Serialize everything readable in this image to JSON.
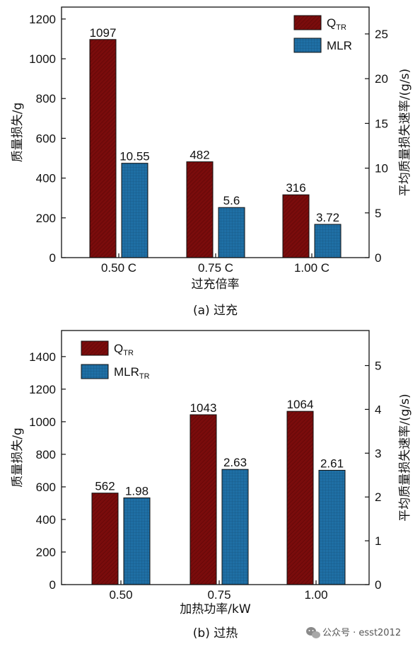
{
  "chart_data": [
    {
      "type": "bar",
      "caption": "(a) 过充",
      "xlabel": "过充倍率",
      "ylabel": "质量损失/g",
      "ylabel_right": "平均质量损失速率/(g/s)",
      "categories": [
        "0.50 C",
        "0.75 C",
        "1.00 C"
      ],
      "ylim": [
        0,
        1260
      ],
      "ylim_right": [
        0,
        28
      ],
      "yticks": [
        0,
        200,
        400,
        600,
        800,
        1000,
        1200
      ],
      "yticks_right": [
        0,
        5,
        10,
        15,
        20,
        25
      ],
      "legend_position": "top-right",
      "series": [
        {
          "name": "Q",
          "name_sub": "TR",
          "axis": "left",
          "color": "#7a0c0c",
          "values": [
            1097,
            482,
            316
          ],
          "labels": [
            "1097",
            "482",
            "316"
          ]
        },
        {
          "name": "MLR",
          "name_sub": "",
          "axis": "right",
          "color": "#1f6fa5",
          "values": [
            10.55,
            5.6,
            3.72
          ],
          "labels": [
            "10.55",
            "5.6",
            "3.72"
          ]
        }
      ]
    },
    {
      "type": "bar",
      "caption": "(b) 过热",
      "xlabel": "加热功率/kW",
      "ylabel": "质量损失/g",
      "ylabel_right": "平均质量损失速率/(g/s)",
      "categories": [
        "0.50",
        "0.75",
        "1.00"
      ],
      "ylim": [
        0,
        1560
      ],
      "ylim_right": [
        0,
        5.8
      ],
      "yticks": [
        0,
        200,
        400,
        600,
        800,
        1000,
        1200,
        1400
      ],
      "yticks_right": [
        0,
        1,
        2,
        3,
        4,
        5
      ],
      "legend_position": "top-left",
      "series": [
        {
          "name": "Q",
          "name_sub": "TR",
          "axis": "left",
          "color": "#7a0c0c",
          "values": [
            562,
            1043,
            1064
          ],
          "labels": [
            "562",
            "1043",
            "1064"
          ]
        },
        {
          "name": "MLR",
          "name_sub": "TR",
          "axis": "right",
          "color": "#1f6fa5",
          "values": [
            1.98,
            2.63,
            2.61
          ],
          "labels": [
            "1.98",
            "2.63",
            "2.61"
          ]
        }
      ]
    }
  ],
  "watermark": "公众号 · esst2012"
}
